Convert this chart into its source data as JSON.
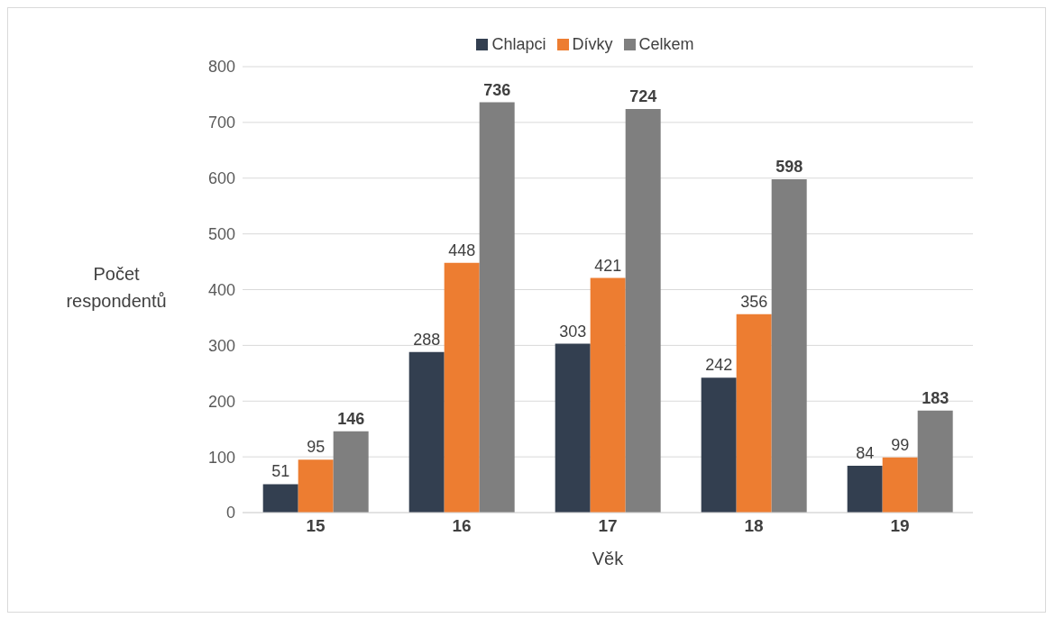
{
  "chart_data": {
    "type": "bar",
    "categories": [
      "15",
      "16",
      "17",
      "18",
      "19"
    ],
    "series": [
      {
        "name": "Chlapci",
        "color": "#333f50",
        "values": [
          51,
          288,
          303,
          242,
          84
        ]
      },
      {
        "name": "Dívky",
        "color": "#ed7d31",
        "values": [
          95,
          448,
          421,
          356,
          99
        ]
      },
      {
        "name": "Celkem",
        "color": "#7f7f7f",
        "values": [
          146,
          736,
          724,
          598,
          183
        ]
      }
    ],
    "xlabel": "Věk",
    "ylabel": "Počet respondentů",
    "ylim": [
      0,
      800
    ],
    "yticks": [
      0,
      100,
      200,
      300,
      400,
      500,
      600,
      700,
      800
    ],
    "grid": "y",
    "legend": "top",
    "data_labels": true
  }
}
